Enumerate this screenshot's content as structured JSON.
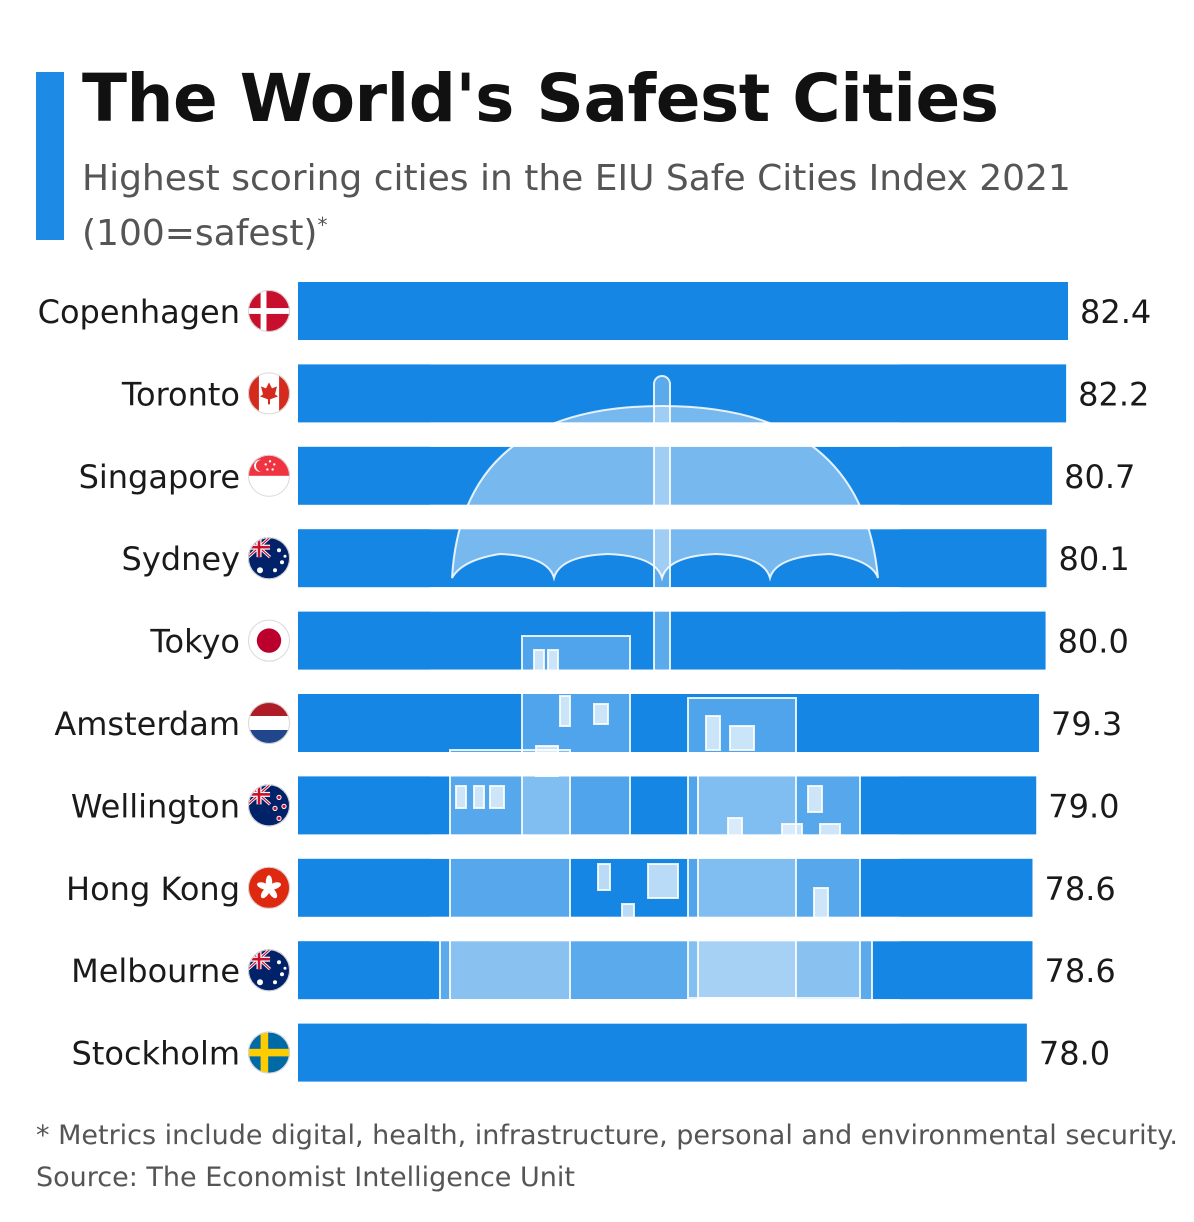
{
  "header": {
    "title": "The World's Safest Cities",
    "subtitle": "Highest scoring cities in the EIU Safe Cities Index 2021 (100=safest)",
    "subtitle_marker": "*"
  },
  "footer": {
    "footnote": "* Metrics include digital, health, infrastructure, personal and environmental security.",
    "source": "Source: The Economist Intelligence Unit"
  },
  "colors": {
    "accent": "#1d8ae6",
    "bar": "#1586e4",
    "label": "#1a1a1a"
  },
  "chart_data": {
    "type": "bar",
    "orientation": "horizontal",
    "categories": [
      "Copenhagen",
      "Toronto",
      "Singapore",
      "Sydney",
      "Tokyo",
      "Amsterdam",
      "Wellington",
      "Hong Kong",
      "Melbourne",
      "Stockholm"
    ],
    "values": [
      82.4,
      82.2,
      80.7,
      80.1,
      80.0,
      79.3,
      79.0,
      78.6,
      78.6,
      78.0
    ],
    "value_labels": [
      "82.4",
      "82.2",
      "80.7",
      "80.1",
      "80.0",
      "79.3",
      "79.0",
      "78.6",
      "78.6",
      "78.0"
    ],
    "flags": [
      "denmark-flag",
      "canada-flag",
      "singapore-flag",
      "australia-flag",
      "japan-flag",
      "netherlands-flag",
      "new-zealand-flag",
      "hong-kong-flag",
      "australia-flag",
      "sweden-flag"
    ],
    "xlim": [
      0,
      82.4
    ],
    "grid": false,
    "legend": "none",
    "background_illustration": "umbrella-over-buildings"
  }
}
